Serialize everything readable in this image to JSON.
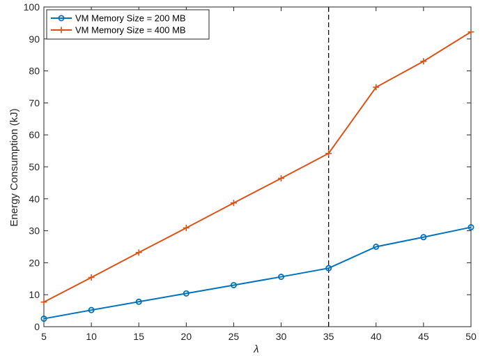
{
  "chart_data": {
    "type": "line",
    "xlabel": "λ",
    "ylabel": "Energy Consumption (kJ)",
    "xlim": [
      5,
      50
    ],
    "ylim": [
      0,
      100
    ],
    "xticks": [
      5,
      10,
      15,
      20,
      25,
      30,
      35,
      40,
      45,
      50
    ],
    "yticks": [
      0,
      10,
      20,
      30,
      40,
      50,
      60,
      70,
      80,
      90,
      100
    ],
    "grid": false,
    "legend_position": "top-left",
    "x": [
      5,
      10,
      15,
      20,
      25,
      30,
      35,
      40,
      45,
      50
    ],
    "series": [
      {
        "name": "VM Memory Size = 200 MB",
        "color": "#0072BD",
        "marker": "circle",
        "values": [
          2.5,
          5.2,
          7.8,
          10.4,
          13.0,
          15.6,
          18.3,
          25.0,
          28.0,
          31.1
        ]
      },
      {
        "name": "VM Memory Size = 400 MB",
        "color": "#D95319",
        "marker": "plus",
        "values": [
          7.7,
          15.4,
          23.2,
          30.9,
          38.7,
          46.4,
          54.2,
          74.9,
          83.0,
          92.2
        ]
      }
    ],
    "annotations": [
      {
        "type": "vertical-dashed-line",
        "x": 35,
        "color": "#000000"
      }
    ]
  }
}
